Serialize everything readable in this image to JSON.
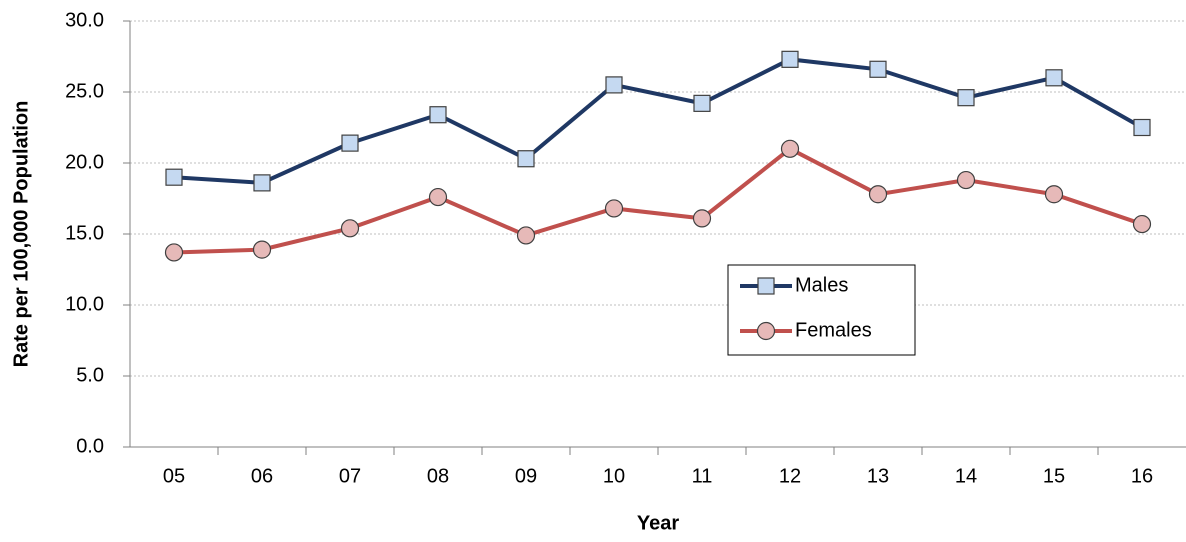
{
  "chart_data": {
    "type": "line",
    "x_label": "Year",
    "y_label": "Rate per 100,000 Population",
    "categories": [
      "05",
      "06",
      "07",
      "08",
      "09",
      "10",
      "11",
      "12",
      "13",
      "14",
      "15",
      "16"
    ],
    "series": [
      {
        "name": "Males",
        "color": "#1f3864",
        "marker": "square",
        "marker_color": "#c5d9f1",
        "values": [
          19.0,
          18.6,
          21.4,
          23.4,
          20.3,
          25.5,
          24.2,
          27.3,
          26.6,
          24.6,
          26.0,
          22.5
        ]
      },
      {
        "name": "Females",
        "color": "#c0504d",
        "marker": "circle",
        "marker_color": "#e6b9b8",
        "values": [
          13.7,
          13.9,
          15.4,
          17.6,
          14.9,
          16.8,
          16.1,
          21.0,
          17.8,
          18.8,
          17.8,
          15.7
        ]
      }
    ],
    "ylim": [
      0,
      30
    ],
    "yticks": [
      {
        "value": 0,
        "label": "0.0"
      },
      {
        "value": 5,
        "label": "5.0"
      },
      {
        "value": 10,
        "label": "10.0"
      },
      {
        "value": 15,
        "label": "15.0"
      },
      {
        "value": 20,
        "label": "20.0"
      },
      {
        "value": 25,
        "label": "25.0"
      },
      {
        "value": 30,
        "label": "30.0"
      }
    ],
    "grid": true
  }
}
